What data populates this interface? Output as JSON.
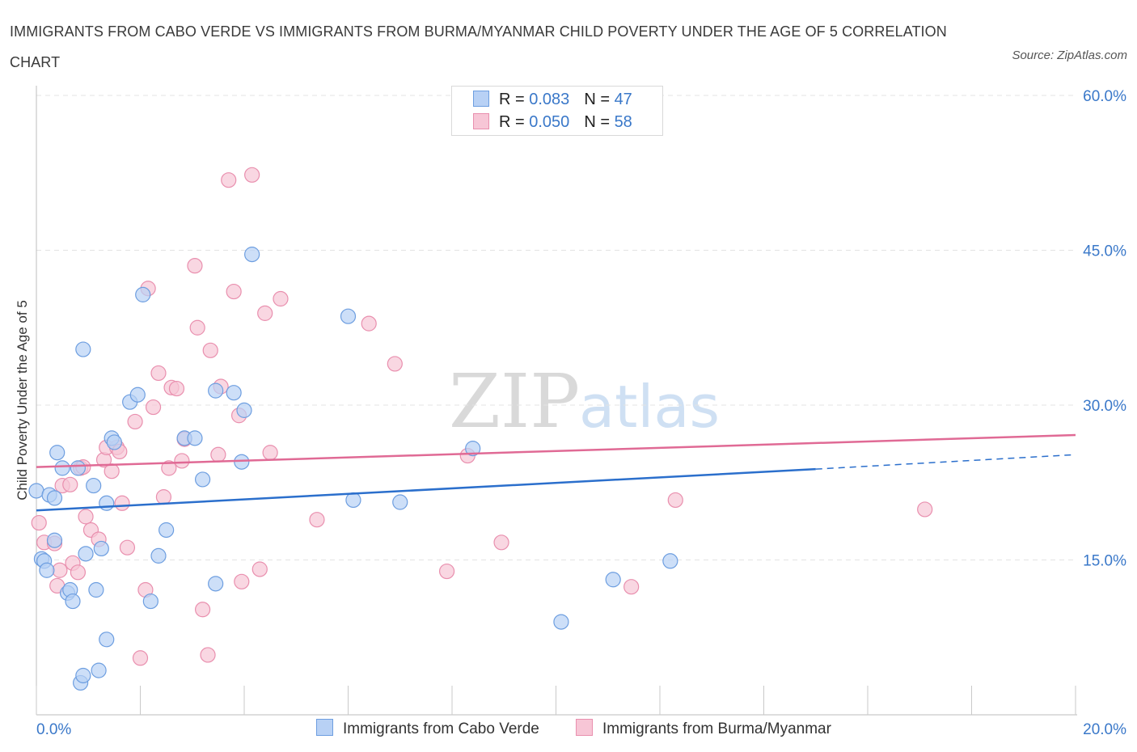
{
  "header": {
    "title": "IMMIGRANTS FROM CABO VERDE VS IMMIGRANTS FROM BURMA/MYANMAR CHILD POVERTY UNDER THE AGE OF 5 CORRELATION CHART",
    "source": "Source: ZipAtlas.com"
  },
  "legend": {
    "rows": [
      {
        "r_label": "R =",
        "r_value": "0.083",
        "n_label": "N =",
        "n_value": "47"
      },
      {
        "r_label": "R =",
        "r_value": "0.050",
        "n_label": "N =",
        "n_value": "58"
      }
    ]
  },
  "colors": {
    "blue_fill": "#b8d1f5",
    "blue_stroke": "#6d9ee0",
    "blue_line": "#2b6fcc",
    "pink_fill": "#f7c6d6",
    "pink_stroke": "#e98fae",
    "pink_line": "#e06a95",
    "axis_label": "#3a78c9",
    "grid": "#e3e3e3"
  },
  "chart_data": {
    "type": "scatter",
    "title": "IMMIGRANTS FROM CABO VERDE VS IMMIGRANTS FROM BURMA/MYANMAR CHILD POVERTY UNDER THE AGE OF 5 CORRELATION CHART",
    "xlabel": "",
    "ylabel": "Child Poverty Under the Age of 5",
    "xlim": [
      0,
      20
    ],
    "ylim": [
      0,
      60
    ],
    "x_tick_labels": [
      "0.0%",
      "20.0%"
    ],
    "y_tick_values": [
      15,
      30,
      45,
      60
    ],
    "y_tick_labels": [
      "15.0%",
      "30.0%",
      "45.0%",
      "60.0%"
    ],
    "watermark": {
      "part1": "ZIP",
      "part2": "atlas"
    },
    "series": [
      {
        "name": "Immigrants from Cabo Verde",
        "r": 0.083,
        "n": 47,
        "trend": {
          "x0": 0,
          "y0": 19.8,
          "x1": 15,
          "y1": 23.8,
          "dash_to_x": 20,
          "dash_to_y": 25.2
        },
        "points": [
          [
            0.0,
            21.7
          ],
          [
            0.1,
            15.1
          ],
          [
            0.15,
            14.9
          ],
          [
            0.2,
            14.0
          ],
          [
            0.25,
            21.3
          ],
          [
            0.35,
            21.0
          ],
          [
            0.35,
            16.9
          ],
          [
            0.4,
            25.4
          ],
          [
            0.5,
            23.9
          ],
          [
            0.6,
            11.8
          ],
          [
            0.65,
            12.1
          ],
          [
            0.7,
            11.0
          ],
          [
            0.8,
            23.9
          ],
          [
            0.85,
            3.1
          ],
          [
            0.9,
            3.8
          ],
          [
            0.9,
            35.4
          ],
          [
            0.95,
            15.6
          ],
          [
            1.1,
            22.2
          ],
          [
            1.15,
            12.1
          ],
          [
            1.2,
            4.3
          ],
          [
            1.25,
            16.1
          ],
          [
            1.35,
            20.5
          ],
          [
            1.35,
            7.3
          ],
          [
            1.45,
            26.8
          ],
          [
            1.5,
            26.4
          ],
          [
            1.8,
            30.3
          ],
          [
            1.95,
            31.0
          ],
          [
            2.05,
            40.7
          ],
          [
            2.2,
            11.0
          ],
          [
            2.35,
            15.4
          ],
          [
            2.5,
            17.9
          ],
          [
            2.85,
            26.8
          ],
          [
            3.05,
            26.8
          ],
          [
            3.2,
            22.8
          ],
          [
            3.45,
            12.7
          ],
          [
            3.45,
            31.4
          ],
          [
            3.8,
            31.2
          ],
          [
            3.95,
            24.5
          ],
          [
            4.0,
            29.5
          ],
          [
            4.15,
            44.6
          ],
          [
            6.0,
            38.6
          ],
          [
            6.1,
            20.8
          ],
          [
            7.0,
            20.6
          ],
          [
            8.4,
            25.8
          ],
          [
            10.1,
            9.0
          ],
          [
            11.1,
            13.1
          ],
          [
            12.2,
            14.9
          ]
        ]
      },
      {
        "name": "Immigrants from Burma/Myanmar",
        "r": 0.05,
        "n": 58,
        "trend": {
          "x0": 0,
          "y0": 24.0,
          "x1": 20,
          "y1": 27.1
        },
        "points": [
          [
            0.05,
            18.6
          ],
          [
            0.15,
            16.7
          ],
          [
            0.35,
            16.6
          ],
          [
            0.4,
            12.5
          ],
          [
            0.45,
            14.0
          ],
          [
            0.5,
            22.2
          ],
          [
            0.65,
            22.3
          ],
          [
            0.7,
            14.7
          ],
          [
            0.8,
            13.8
          ],
          [
            0.85,
            23.9
          ],
          [
            0.9,
            24.0
          ],
          [
            0.95,
            19.2
          ],
          [
            1.05,
            17.9
          ],
          [
            1.2,
            17.0
          ],
          [
            1.3,
            24.7
          ],
          [
            1.35,
            25.9
          ],
          [
            1.45,
            23.6
          ],
          [
            1.55,
            25.9
          ],
          [
            1.6,
            25.5
          ],
          [
            1.65,
            20.5
          ],
          [
            1.75,
            16.2
          ],
          [
            1.9,
            28.4
          ],
          [
            2.0,
            5.5
          ],
          [
            2.1,
            12.1
          ],
          [
            2.15,
            41.3
          ],
          [
            2.25,
            29.8
          ],
          [
            2.35,
            33.1
          ],
          [
            2.45,
            21.1
          ],
          [
            2.55,
            23.9
          ],
          [
            2.6,
            31.7
          ],
          [
            2.7,
            31.6
          ],
          [
            2.8,
            24.6
          ],
          [
            2.85,
            26.7
          ],
          [
            3.05,
            43.5
          ],
          [
            3.1,
            37.5
          ],
          [
            3.2,
            10.2
          ],
          [
            3.3,
            5.8
          ],
          [
            3.35,
            35.3
          ],
          [
            3.5,
            25.2
          ],
          [
            3.55,
            31.8
          ],
          [
            3.7,
            51.8
          ],
          [
            3.8,
            41.0
          ],
          [
            3.9,
            29.0
          ],
          [
            3.95,
            12.9
          ],
          [
            4.15,
            52.3
          ],
          [
            4.3,
            14.1
          ],
          [
            4.4,
            38.9
          ],
          [
            4.5,
            25.4
          ],
          [
            4.7,
            40.3
          ],
          [
            5.4,
            18.9
          ],
          [
            6.4,
            37.9
          ],
          [
            6.9,
            34.0
          ],
          [
            7.9,
            13.9
          ],
          [
            8.3,
            25.1
          ],
          [
            8.95,
            16.7
          ],
          [
            11.45,
            12.4
          ],
          [
            12.3,
            20.8
          ],
          [
            17.1,
            19.9
          ]
        ]
      }
    ]
  }
}
